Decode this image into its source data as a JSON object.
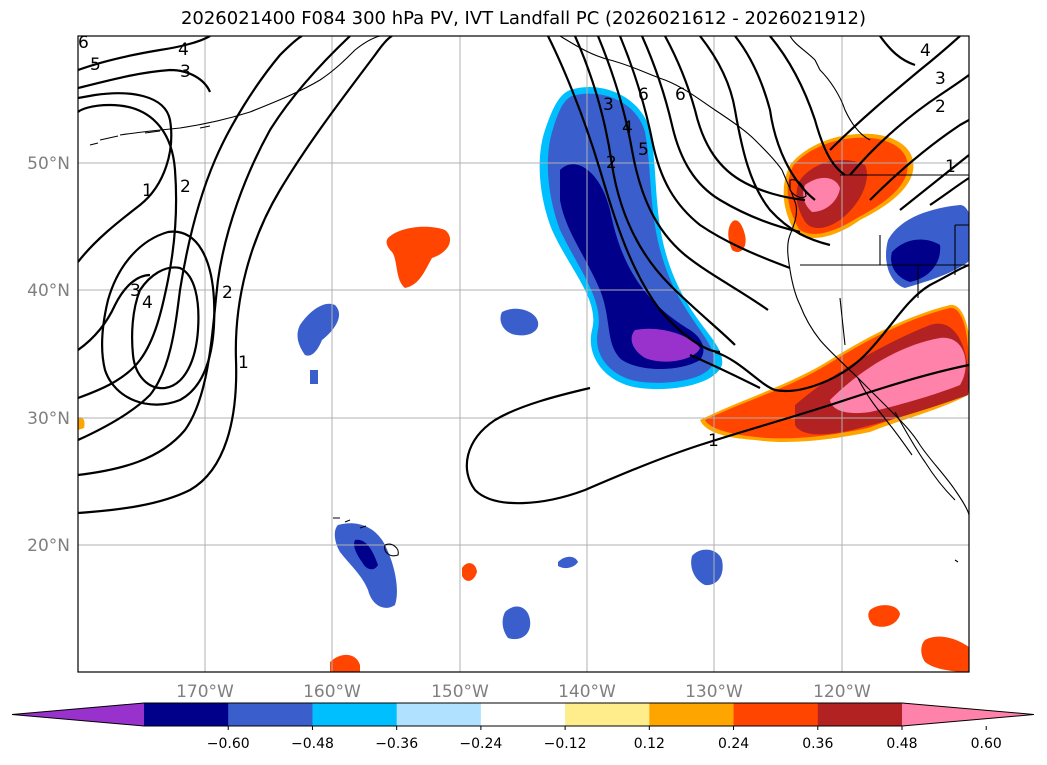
{
  "title": "2026021400 F084 300 hPa PV, IVT Landfall PC (2026021612 - 2026021912)",
  "lon_labels": [
    "170°W",
    "160°W",
    "150°W",
    "140°W",
    "130°W",
    "120°W"
  ],
  "lat_labels": [
    "20°N",
    "30°N",
    "40°N",
    "50°N"
  ],
  "colorbar": {
    "colors": [
      "#9932CC",
      "#00008B",
      "#3A5FCD",
      "#00BFFF",
      "#B0E2FF",
      "#FFFFFF",
      "#FFEC8B",
      "#FFA500",
      "#FF4500",
      "#B22222",
      "#FF82AB"
    ],
    "tick_labels": [
      "−0.60",
      "−0.48",
      "−0.36",
      "−0.24",
      "−0.12",
      "0.12",
      "0.24",
      "0.36",
      "0.48",
      "0.60"
    ]
  },
  "contour_labels": {
    "c1": "1",
    "c2": "2",
    "c3": "3",
    "c4": "4",
    "c5": "5",
    "c6": "6"
  }
}
